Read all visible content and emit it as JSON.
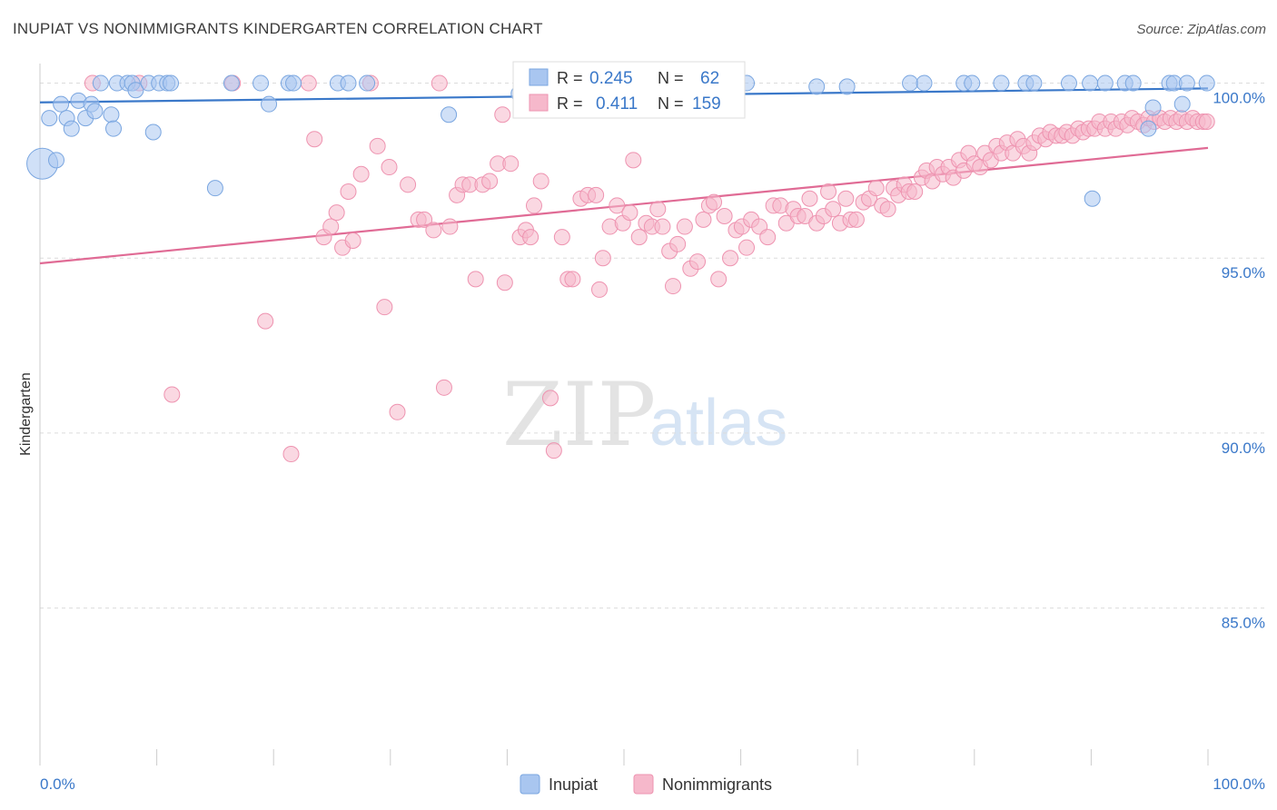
{
  "header": {
    "title": "INUPIAT VS NONIMMIGRANTS KINDERGARTEN CORRELATION CHART",
    "source": "Source: ZipAtlas.com"
  },
  "watermark": {
    "zip": "ZIP",
    "atlas": "atlas"
  },
  "legend_box": {
    "rows": [
      {
        "r_label": "R =",
        "r_value": "0.245",
        "n_label": "N =",
        "n_value": "62"
      },
      {
        "r_label": "R =",
        "r_value": "0.411",
        "n_label": "N =",
        "n_value": "159"
      }
    ]
  },
  "bottom_legend": {
    "items": [
      "Inupiat",
      "Nonimmigrants"
    ]
  },
  "colors": {
    "inupiat_fill": "#a9c6f0",
    "inupiat_stroke": "#7aa6e0",
    "inupiat_line": "#3a78c9",
    "nonimm_fill": "#f6b8cb",
    "nonimm_stroke": "#ee93b0",
    "nonimm_line": "#e06b95",
    "value_text": "#3a78c9",
    "grid": "#dcdcdc"
  },
  "chart_data": {
    "type": "scatter",
    "title": "INUPIAT VS NONIMMIGRANTS KINDERGARTEN CORRELATION CHART",
    "xlabel": "",
    "ylabel": "Kindergarten",
    "xlim": [
      0,
      100
    ],
    "ylim": [
      80.5,
      100.3
    ],
    "x_tick_labels": [
      "0.0%",
      "100.0%"
    ],
    "y_ticks": [
      100,
      95,
      90,
      85
    ],
    "y_tick_labels": [
      "100.0%",
      "95.0%",
      "90.0%",
      "85.0%"
    ],
    "grid": true,
    "series": [
      {
        "name": "Inupiat",
        "r": 0.245,
        "n": 62,
        "trend": {
          "x": [
            0,
            100
          ],
          "y": [
            99.45,
            99.85
          ]
        },
        "points": [
          {
            "x": 0.2,
            "y": 97.7,
            "big": true
          },
          {
            "x": 0.8,
            "y": 99.0
          },
          {
            "x": 1.4,
            "y": 97.8
          },
          {
            "x": 1.8,
            "y": 99.4
          },
          {
            "x": 2.3,
            "y": 99.0
          },
          {
            "x": 2.7,
            "y": 98.7
          },
          {
            "x": 3.3,
            "y": 99.5
          },
          {
            "x": 3.9,
            "y": 99.0
          },
          {
            "x": 4.4,
            "y": 99.4
          },
          {
            "x": 4.7,
            "y": 99.2
          },
          {
            "x": 5.2,
            "y": 100.0
          },
          {
            "x": 6.1,
            "y": 99.1
          },
          {
            "x": 6.3,
            "y": 98.7
          },
          {
            "x": 6.6,
            "y": 100.0
          },
          {
            "x": 7.5,
            "y": 100.0
          },
          {
            "x": 7.9,
            "y": 100.0
          },
          {
            "x": 8.2,
            "y": 99.8
          },
          {
            "x": 9.3,
            "y": 100.0
          },
          {
            "x": 9.7,
            "y": 98.6
          },
          {
            "x": 10.2,
            "y": 100.0
          },
          {
            "x": 10.9,
            "y": 100.0
          },
          {
            "x": 11.2,
            "y": 100.0
          },
          {
            "x": 15.0,
            "y": 97.0
          },
          {
            "x": 16.4,
            "y": 100.0
          },
          {
            "x": 18.9,
            "y": 100.0
          },
          {
            "x": 19.6,
            "y": 99.4
          },
          {
            "x": 21.3,
            "y": 100.0
          },
          {
            "x": 21.7,
            "y": 100.0
          },
          {
            "x": 25.5,
            "y": 100.0
          },
          {
            "x": 26.4,
            "y": 100.0
          },
          {
            "x": 28.0,
            "y": 100.0
          },
          {
            "x": 35.0,
            "y": 99.1
          },
          {
            "x": 41.0,
            "y": 99.7
          },
          {
            "x": 47.5,
            "y": 100.0
          },
          {
            "x": 55.5,
            "y": 100.0
          },
          {
            "x": 60.5,
            "y": 100.0
          },
          {
            "x": 66.5,
            "y": 99.9
          },
          {
            "x": 69.1,
            "y": 99.9
          },
          {
            "x": 74.5,
            "y": 100.0
          },
          {
            "x": 75.7,
            "y": 100.0
          },
          {
            "x": 79.1,
            "y": 100.0
          },
          {
            "x": 79.8,
            "y": 100.0
          },
          {
            "x": 82.3,
            "y": 100.0
          },
          {
            "x": 84.4,
            "y": 100.0
          },
          {
            "x": 85.1,
            "y": 100.0
          },
          {
            "x": 88.1,
            "y": 100.0
          },
          {
            "x": 89.9,
            "y": 100.0
          },
          {
            "x": 90.1,
            "y": 96.7
          },
          {
            "x": 91.2,
            "y": 100.0
          },
          {
            "x": 92.9,
            "y": 100.0
          },
          {
            "x": 93.6,
            "y": 100.0
          },
          {
            "x": 94.9,
            "y": 98.7
          },
          {
            "x": 95.3,
            "y": 99.3
          },
          {
            "x": 96.7,
            "y": 100.0
          },
          {
            "x": 97.1,
            "y": 100.0
          },
          {
            "x": 97.8,
            "y": 99.4
          },
          {
            "x": 98.2,
            "y": 100.0
          },
          {
            "x": 99.9,
            "y": 100.0
          }
        ]
      },
      {
        "name": "Nonimmigrants",
        "r": 0.411,
        "n": 159,
        "trend": {
          "x": [
            0,
            100
          ],
          "y": [
            94.85,
            98.15
          ]
        },
        "points": [
          {
            "x": 4.5,
            "y": 100.0
          },
          {
            "x": 8.5,
            "y": 100.0
          },
          {
            "x": 11.3,
            "y": 91.1
          },
          {
            "x": 16.5,
            "y": 100.0
          },
          {
            "x": 19.3,
            "y": 93.2
          },
          {
            "x": 21.5,
            "y": 89.4
          },
          {
            "x": 23.0,
            "y": 100.0
          },
          {
            "x": 23.5,
            "y": 98.4
          },
          {
            "x": 24.3,
            "y": 95.6
          },
          {
            "x": 24.9,
            "y": 95.9
          },
          {
            "x": 25.4,
            "y": 96.3
          },
          {
            "x": 25.9,
            "y": 95.3
          },
          {
            "x": 26.4,
            "y": 96.9
          },
          {
            "x": 26.8,
            "y": 95.5
          },
          {
            "x": 27.5,
            "y": 97.4
          },
          {
            "x": 28.3,
            "y": 100.0
          },
          {
            "x": 28.9,
            "y": 98.2
          },
          {
            "x": 29.5,
            "y": 93.6
          },
          {
            "x": 29.9,
            "y": 97.6
          },
          {
            "x": 30.6,
            "y": 90.6
          },
          {
            "x": 31.5,
            "y": 97.1
          },
          {
            "x": 32.4,
            "y": 96.1
          },
          {
            "x": 32.9,
            "y": 96.1
          },
          {
            "x": 33.7,
            "y": 95.8
          },
          {
            "x": 34.2,
            "y": 100.0
          },
          {
            "x": 34.6,
            "y": 91.3
          },
          {
            "x": 35.1,
            "y": 95.9
          },
          {
            "x": 35.7,
            "y": 96.8
          },
          {
            "x": 36.2,
            "y": 97.1
          },
          {
            "x": 36.8,
            "y": 97.1
          },
          {
            "x": 37.3,
            "y": 94.4
          },
          {
            "x": 37.9,
            "y": 97.1
          },
          {
            "x": 38.5,
            "y": 97.2
          },
          {
            "x": 39.2,
            "y": 97.7
          },
          {
            "x": 39.6,
            "y": 99.1
          },
          {
            "x": 39.8,
            "y": 94.3
          },
          {
            "x": 40.3,
            "y": 97.7
          },
          {
            "x": 41.1,
            "y": 95.6
          },
          {
            "x": 41.6,
            "y": 95.8
          },
          {
            "x": 42.0,
            "y": 95.6
          },
          {
            "x": 42.3,
            "y": 96.5
          },
          {
            "x": 42.9,
            "y": 97.2
          },
          {
            "x": 43.7,
            "y": 91.0
          },
          {
            "x": 44.0,
            "y": 89.5
          },
          {
            "x": 44.7,
            "y": 95.6
          },
          {
            "x": 45.2,
            "y": 94.4
          },
          {
            "x": 45.6,
            "y": 94.4
          },
          {
            "x": 46.3,
            "y": 96.7
          },
          {
            "x": 46.9,
            "y": 96.8
          },
          {
            "x": 47.6,
            "y": 96.8
          },
          {
            "x": 47.9,
            "y": 94.1
          },
          {
            "x": 48.2,
            "y": 95.0
          },
          {
            "x": 48.8,
            "y": 95.9
          },
          {
            "x": 49.4,
            "y": 96.5
          },
          {
            "x": 49.9,
            "y": 96.0
          },
          {
            "x": 50.5,
            "y": 96.3
          },
          {
            "x": 50.8,
            "y": 97.8
          },
          {
            "x": 51.3,
            "y": 95.6
          },
          {
            "x": 51.9,
            "y": 96.0
          },
          {
            "x": 52.4,
            "y": 95.9
          },
          {
            "x": 52.9,
            "y": 96.4
          },
          {
            "x": 53.3,
            "y": 95.9
          },
          {
            "x": 53.9,
            "y": 95.2
          },
          {
            "x": 54.2,
            "y": 94.2
          },
          {
            "x": 54.6,
            "y": 95.4
          },
          {
            "x": 55.2,
            "y": 95.9
          },
          {
            "x": 55.7,
            "y": 94.7
          },
          {
            "x": 56.3,
            "y": 94.9
          },
          {
            "x": 56.8,
            "y": 96.1
          },
          {
            "x": 57.3,
            "y": 96.5
          },
          {
            "x": 57.7,
            "y": 96.6
          },
          {
            "x": 58.1,
            "y": 94.4
          },
          {
            "x": 58.6,
            "y": 96.2
          },
          {
            "x": 59.1,
            "y": 95.0
          },
          {
            "x": 59.6,
            "y": 95.8
          },
          {
            "x": 60.1,
            "y": 95.9
          },
          {
            "x": 60.5,
            "y": 95.3
          },
          {
            "x": 60.9,
            "y": 96.1
          },
          {
            "x": 61.6,
            "y": 95.9
          },
          {
            "x": 62.3,
            "y": 95.6
          },
          {
            "x": 62.8,
            "y": 96.5
          },
          {
            "x": 63.4,
            "y": 96.5
          },
          {
            "x": 63.9,
            "y": 96.0
          },
          {
            "x": 64.5,
            "y": 96.4
          },
          {
            "x": 64.9,
            "y": 96.2
          },
          {
            "x": 65.5,
            "y": 96.2
          },
          {
            "x": 65.9,
            "y": 96.7
          },
          {
            "x": 66.5,
            "y": 96.0
          },
          {
            "x": 67.1,
            "y": 96.2
          },
          {
            "x": 67.5,
            "y": 96.9
          },
          {
            "x": 67.9,
            "y": 96.4
          },
          {
            "x": 68.5,
            "y": 96.0
          },
          {
            "x": 69.0,
            "y": 96.7
          },
          {
            "x": 69.4,
            "y": 96.1
          },
          {
            "x": 69.9,
            "y": 96.1
          },
          {
            "x": 70.5,
            "y": 96.6
          },
          {
            "x": 71.0,
            "y": 96.7
          },
          {
            "x": 71.6,
            "y": 97.0
          },
          {
            "x": 72.1,
            "y": 96.5
          },
          {
            "x": 72.6,
            "y": 96.4
          },
          {
            "x": 73.1,
            "y": 97.0
          },
          {
            "x": 73.5,
            "y": 96.8
          },
          {
            "x": 74.0,
            "y": 97.1
          },
          {
            "x": 74.4,
            "y": 96.9
          },
          {
            "x": 74.9,
            "y": 96.9
          },
          {
            "x": 75.5,
            "y": 97.3
          },
          {
            "x": 75.9,
            "y": 97.5
          },
          {
            "x": 76.4,
            "y": 97.2
          },
          {
            "x": 76.8,
            "y": 97.6
          },
          {
            "x": 77.3,
            "y": 97.4
          },
          {
            "x": 77.8,
            "y": 97.6
          },
          {
            "x": 78.2,
            "y": 97.3
          },
          {
            "x": 78.7,
            "y": 97.8
          },
          {
            "x": 79.1,
            "y": 97.5
          },
          {
            "x": 79.5,
            "y": 98.0
          },
          {
            "x": 80.0,
            "y": 97.7
          },
          {
            "x": 80.5,
            "y": 97.6
          },
          {
            "x": 80.9,
            "y": 98.0
          },
          {
            "x": 81.4,
            "y": 97.8
          },
          {
            "x": 81.9,
            "y": 98.2
          },
          {
            "x": 82.3,
            "y": 98.0
          },
          {
            "x": 82.8,
            "y": 98.3
          },
          {
            "x": 83.3,
            "y": 98.0
          },
          {
            "x": 83.7,
            "y": 98.4
          },
          {
            "x": 84.2,
            "y": 98.2
          },
          {
            "x": 84.7,
            "y": 98.0
          },
          {
            "x": 85.1,
            "y": 98.3
          },
          {
            "x": 85.6,
            "y": 98.5
          },
          {
            "x": 86.1,
            "y": 98.4
          },
          {
            "x": 86.5,
            "y": 98.6
          },
          {
            "x": 87.0,
            "y": 98.5
          },
          {
            "x": 87.5,
            "y": 98.5
          },
          {
            "x": 87.9,
            "y": 98.6
          },
          {
            "x": 88.4,
            "y": 98.5
          },
          {
            "x": 88.9,
            "y": 98.7
          },
          {
            "x": 89.3,
            "y": 98.6
          },
          {
            "x": 89.8,
            "y": 98.7
          },
          {
            "x": 90.3,
            "y": 98.7
          },
          {
            "x": 90.7,
            "y": 98.9
          },
          {
            "x": 91.2,
            "y": 98.7
          },
          {
            "x": 91.7,
            "y": 98.9
          },
          {
            "x": 92.1,
            "y": 98.7
          },
          {
            "x": 92.6,
            "y": 98.9
          },
          {
            "x": 93.1,
            "y": 98.8
          },
          {
            "x": 93.5,
            "y": 99.0
          },
          {
            "x": 94.0,
            "y": 98.9
          },
          {
            "x": 94.5,
            "y": 98.8
          },
          {
            "x": 94.9,
            "y": 99.0
          },
          {
            "x": 95.4,
            "y": 98.9
          },
          {
            "x": 95.9,
            "y": 99.0
          },
          {
            "x": 96.3,
            "y": 98.9
          },
          {
            "x": 96.8,
            "y": 99.0
          },
          {
            "x": 97.3,
            "y": 98.9
          },
          {
            "x": 97.7,
            "y": 99.0
          },
          {
            "x": 98.2,
            "y": 98.9
          },
          {
            "x": 98.7,
            "y": 99.0
          },
          {
            "x": 99.1,
            "y": 98.9
          },
          {
            "x": 99.6,
            "y": 98.9
          },
          {
            "x": 99.9,
            "y": 98.9
          }
        ]
      }
    ]
  }
}
